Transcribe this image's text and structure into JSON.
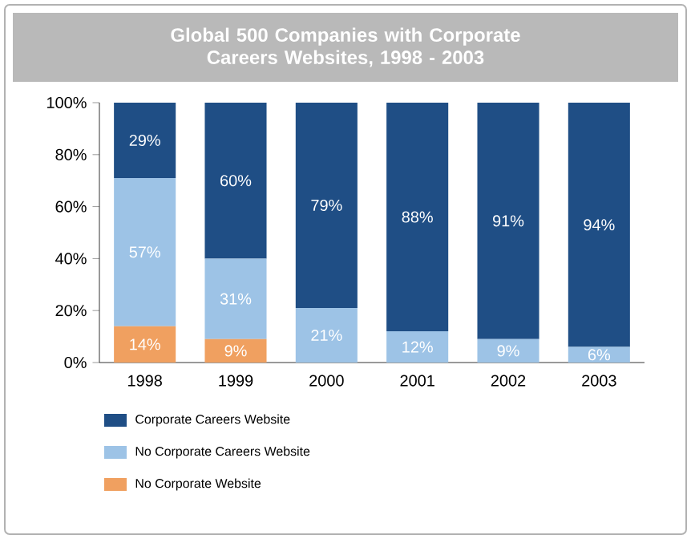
{
  "chart_data": {
    "type": "bar",
    "stacked": true,
    "title": "Global 500 Companies with Corporate Careers Websites, 1998 - 2003",
    "categories": [
      "1998",
      "1999",
      "2000",
      "2001",
      "2002",
      "2003"
    ],
    "series": [
      {
        "name": "No Corporate Website",
        "color": "#f0a060",
        "values": [
          14,
          9,
          0,
          0,
          0,
          0
        ],
        "value_labels": [
          "14%",
          "9%",
          null,
          null,
          null,
          null
        ]
      },
      {
        "name": "No Corporate Careers Website",
        "color": "#9dc3e6",
        "values": [
          57,
          31,
          21,
          12,
          9,
          6
        ],
        "value_labels": [
          "57%",
          "31%",
          "21%",
          "12%",
          "9%",
          "6%"
        ]
      },
      {
        "name": "Corporate Careers Website",
        "color": "#1f4e85",
        "values": [
          29,
          60,
          79,
          88,
          91,
          94
        ],
        "value_labels": [
          "29%",
          "60%",
          "79%",
          "88%",
          "91%",
          "94%"
        ]
      }
    ],
    "ylim": [
      0,
      100
    ],
    "yticks": [
      {
        "value": 0,
        "label": "0%"
      },
      {
        "value": 20,
        "label": "20%"
      },
      {
        "value": 40,
        "label": "40%"
      },
      {
        "value": 60,
        "label": "60%"
      },
      {
        "value": 80,
        "label": "80%"
      },
      {
        "value": 100,
        "label": "100%"
      }
    ],
    "legend": "bottom"
  }
}
